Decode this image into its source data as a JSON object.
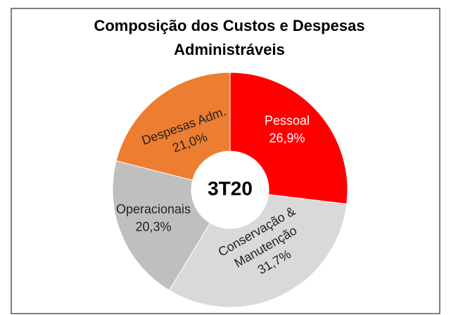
{
  "chart_data": {
    "type": "donut",
    "title": [
      "Composição dos Custos e Despesas",
      "Administráveis"
    ],
    "center_label": "3T20",
    "categories": [
      [
        "Pessoal"
      ],
      [
        "Conservação &",
        "Manutenção"
      ],
      [
        "Operacionais"
      ],
      [
        "Despesas Adm."
      ]
    ],
    "values": [
      26.9,
      31.7,
      20.3,
      21.0
    ],
    "value_labels": [
      "26,9%",
      "31,7%",
      "20,3%",
      "21,0%"
    ],
    "colors": [
      "#ff0000",
      "#d9d9d9",
      "#bfbfbf",
      "#ed7d31"
    ],
    "label_colors": [
      "#ffffff",
      "#222222",
      "#222222",
      "#222222"
    ]
  }
}
